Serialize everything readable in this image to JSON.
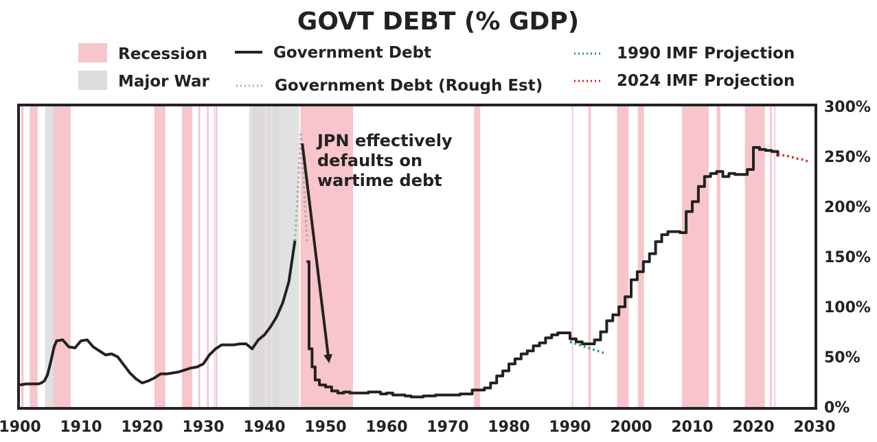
{
  "chart_data": {
    "type": "line",
    "title": "GOVT DEBT (% GDP)",
    "xlabel": "",
    "ylabel": "",
    "xlim": [
      1900,
      2030
    ],
    "ylim": [
      0,
      300
    ],
    "x_ticks": [
      1900,
      1910,
      1920,
      1930,
      1940,
      1950,
      1960,
      1970,
      1980,
      1990,
      2000,
      2010,
      2020,
      2030
    ],
    "y_ticks": [
      0,
      50,
      100,
      150,
      200,
      250,
      300
    ],
    "y_tick_labels": [
      "0%",
      "50%",
      "100%",
      "150%",
      "200%",
      "250%",
      "300%"
    ],
    "y_axis_side": "right",
    "grid": false,
    "legend": {
      "placement": "top",
      "items": [
        {
          "label": "Recession",
          "kind": "box",
          "color": "#f7c5cb"
        },
        {
          "label": "Major War",
          "kind": "box",
          "color": "#dcdcdc"
        },
        {
          "label": "Government Debt",
          "kind": "line",
          "color": "#222222"
        },
        {
          "label": "Government Debt (Rough Est)",
          "kind": "dotted",
          "color": "#aaaaaa"
        },
        {
          "label": "1990 IMF Projection",
          "kind": "dotted",
          "color": "#1a9850"
        },
        {
          "label": "2024 IMF Projection",
          "kind": "dotted",
          "color": "#d7191c"
        }
      ]
    },
    "recessions": [
      [
        1900.2,
        1900.6
      ],
      [
        1901.6,
        1902.9
      ],
      [
        1905.3,
        1908.3
      ],
      [
        1922.0,
        1923.8
      ],
      [
        1926.5,
        1928.2
      ],
      [
        1929.2,
        1929.5
      ],
      [
        1930.6,
        1930.9
      ],
      [
        1932.0,
        1932.3
      ],
      [
        1938.0,
        1940.0
      ],
      [
        1940.5,
        1941.0
      ],
      [
        1941.5,
        1942.4
      ],
      [
        1945.9,
        1954.5
      ],
      [
        1974.3,
        1975.3
      ],
      [
        1990.3,
        1990.5
      ],
      [
        1993.0,
        1993.4
      ],
      [
        1997.7,
        1999.6
      ],
      [
        2001.1,
        2002.1
      ],
      [
        2008.3,
        2012.7
      ],
      [
        2014.0,
        2014.6
      ],
      [
        2018.6,
        2021.9
      ],
      [
        2022.7,
        2023.0
      ],
      [
        2023.4,
        2023.6
      ]
    ],
    "wars": [
      [
        1904.1,
        1905.6
      ],
      [
        1931.7,
        1931.9
      ],
      [
        1937.5,
        1945.7
      ]
    ],
    "series": [
      {
        "name": "Government Debt",
        "style": "solid",
        "color": "#222222",
        "x": [
          1900,
          1901,
          1902,
          1903,
          1903.5,
          1904,
          1904.5,
          1905,
          1905.6,
          1906,
          1907,
          1908,
          1909,
          1910,
          1911,
          1912,
          1913,
          1914,
          1915,
          1916,
          1917,
          1918,
          1919,
          1920,
          1921,
          1922,
          1923,
          1924,
          1925,
          1926,
          1927,
          1928,
          1929,
          1930,
          1931,
          1932,
          1933,
          1934,
          1935,
          1936,
          1937,
          1938,
          1939,
          1940,
          1941,
          1942,
          1943,
          1944,
          1945
        ],
        "y": [
          22,
          23,
          23,
          23,
          24,
          26,
          32,
          44,
          60,
          66,
          67,
          60,
          59,
          66,
          67,
          60,
          56,
          52,
          53,
          50,
          42,
          34,
          28,
          24,
          26,
          29,
          33,
          33,
          34,
          35,
          37,
          39,
          40,
          43,
          52,
          58,
          62,
          62,
          62,
          63,
          63,
          58,
          67,
          72,
          80,
          90,
          104,
          125,
          166
        ]
      },
      {
        "name": "Government Debt (Rough Est)",
        "style": "dotted",
        "color": "#aaaaaa",
        "x": [
          1945,
          1946,
          1947
        ],
        "y": [
          166,
          272,
          163
        ]
      },
      {
        "name": "Government Debt",
        "style": "solid",
        "color": "#222222",
        "x": [
          1946.9,
          1947.3,
          1947.8,
          1948.3,
          1949,
          1950,
          1951,
          1952,
          1953,
          1954,
          1955,
          1956,
          1957,
          1958,
          1959,
          1960,
          1961,
          1962,
          1963,
          1964,
          1965,
          1966,
          1967,
          1968,
          1969,
          1970,
          1971,
          1972,
          1973,
          1974,
          1975,
          1976,
          1977,
          1978,
          1979,
          1980,
          1981,
          1982,
          1983,
          1984,
          1985,
          1986,
          1987,
          1988,
          1989,
          1990,
          1991,
          1992,
          1993,
          1994,
          1995,
          1996,
          1997,
          1998,
          1999,
          2000,
          2001,
          2002,
          2003,
          2004,
          2005,
          2006,
          2007,
          2008,
          2009,
          2010,
          2011,
          2012,
          2013,
          2014,
          2015,
          2016,
          2017,
          2018,
          2019,
          2020,
          2021,
          2022,
          2023,
          2024
        ],
        "y": [
          145,
          58,
          40,
          27,
          22,
          20,
          16,
          14,
          15,
          14,
          14,
          14,
          15,
          15,
          13,
          14,
          12,
          12,
          11,
          10,
          10,
          11,
          11,
          12,
          12,
          12,
          12,
          13,
          13,
          17,
          17,
          19,
          24,
          31,
          36,
          43,
          48,
          53,
          56,
          61,
          64,
          69,
          72,
          74,
          74,
          68,
          65,
          63,
          63,
          67,
          75,
          86,
          92,
          100,
          110,
          127,
          135,
          145,
          153,
          165,
          172,
          175,
          175,
          174,
          195,
          205,
          220,
          230,
          233,
          235,
          230,
          233,
          232,
          232,
          237,
          259,
          257,
          256,
          255,
          250
        ]
      },
      {
        "name": "1990 IMF Projection",
        "style": "dotted",
        "color": "#1a9850",
        "x": [
          1990,
          1992,
          1994,
          1996
        ],
        "y": [
          65,
          61,
          57,
          53
        ]
      },
      {
        "name": "2024 IMF Projection",
        "style": "dotted",
        "color": "#d7191c",
        "x": [
          2024,
          2026,
          2027,
          2028,
          2029
        ],
        "y": [
          252,
          250,
          248,
          247,
          245
        ]
      }
    ],
    "annotations": [
      {
        "text": [
          "JPN effectively",
          "defaults on",
          "wartime debt"
        ],
        "arrow_from": [
          1946.2,
          263
        ],
        "arrow_to": [
          1950.5,
          48
        ]
      }
    ]
  }
}
